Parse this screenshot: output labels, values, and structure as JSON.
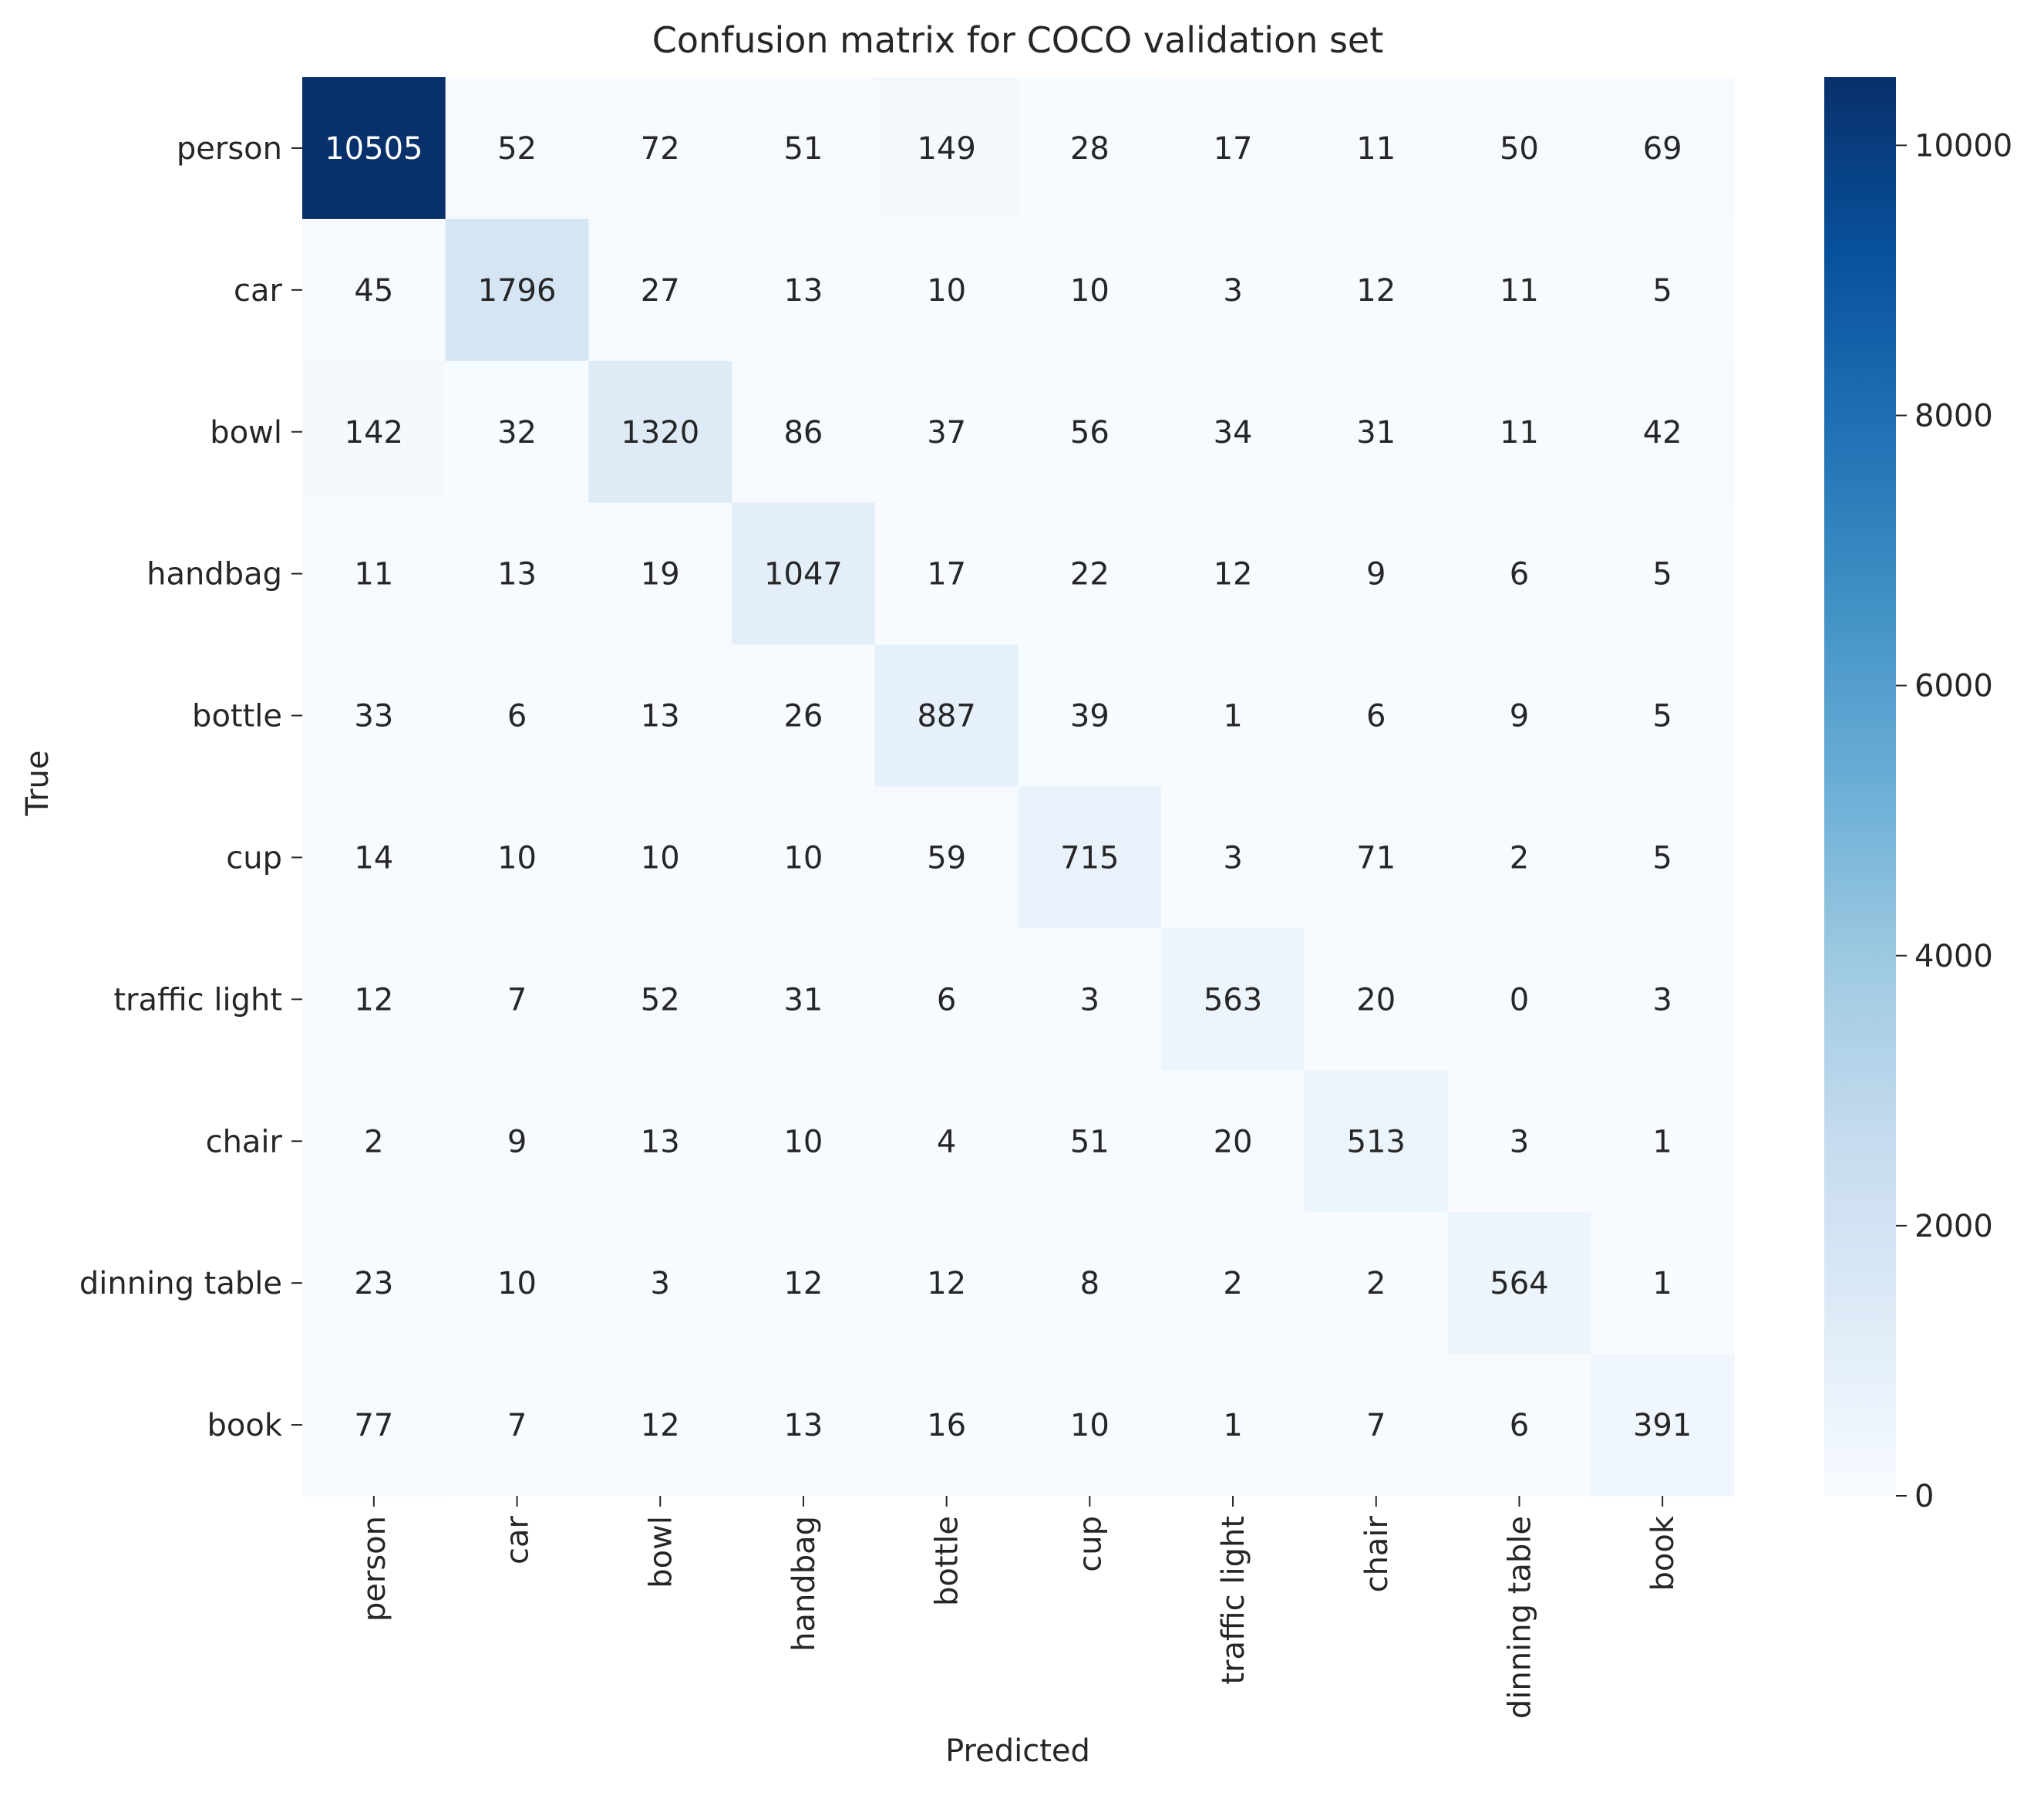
{
  "chart_data": {
    "type": "heatmap",
    "title": "Confusion matrix for COCO validation set",
    "xlabel": "Predicted",
    "ylabel": "True",
    "colormap": "Blues",
    "x_categories": [
      "person",
      "car",
      "bowl",
      "handbag",
      "bottle",
      "cup",
      "traffic light",
      "chair",
      "dinning table",
      "book"
    ],
    "y_categories": [
      "person",
      "car",
      "bowl",
      "handbag",
      "bottle",
      "cup",
      "traffic light",
      "chair",
      "dinning table",
      "book"
    ],
    "values": [
      [
        10505,
        52,
        72,
        51,
        149,
        28,
        17,
        11,
        50,
        69
      ],
      [
        45,
        1796,
        27,
        13,
        10,
        10,
        3,
        12,
        11,
        5
      ],
      [
        142,
        32,
        1320,
        86,
        37,
        56,
        34,
        31,
        11,
        42
      ],
      [
        11,
        13,
        19,
        1047,
        17,
        22,
        12,
        9,
        6,
        5
      ],
      [
        33,
        6,
        13,
        26,
        887,
        39,
        1,
        6,
        9,
        5
      ],
      [
        14,
        10,
        10,
        10,
        59,
        715,
        3,
        71,
        2,
        5
      ],
      [
        12,
        7,
        52,
        31,
        6,
        3,
        563,
        20,
        0,
        3
      ],
      [
        2,
        9,
        13,
        10,
        4,
        51,
        20,
        513,
        3,
        1
      ],
      [
        23,
        10,
        3,
        12,
        12,
        8,
        2,
        2,
        564,
        1
      ],
      [
        77,
        7,
        12,
        13,
        16,
        10,
        1,
        7,
        6,
        391
      ]
    ],
    "colorbar": {
      "range": [
        0,
        10505
      ],
      "ticks": [
        0,
        2000,
        4000,
        6000,
        8000,
        10000
      ]
    }
  }
}
